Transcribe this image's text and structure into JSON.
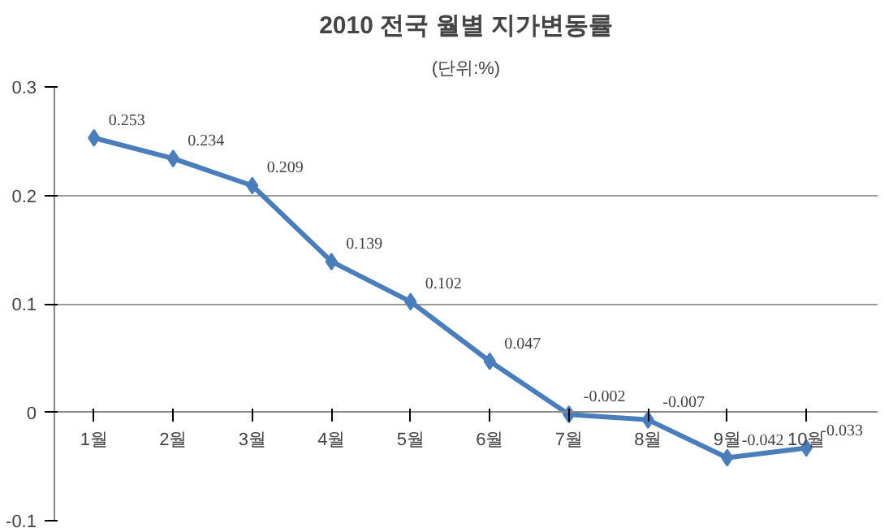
{
  "chart_data": {
    "type": "line",
    "title": "2010 전국 월별 지가변동률",
    "subtitle": "(단위:%)",
    "categories": [
      "1월",
      "2월",
      "3월",
      "4월",
      "5월",
      "6월",
      "7월",
      "8월",
      "9월",
      "10월"
    ],
    "series": [
      {
        "color": "#4a7ebb",
        "values": [
          0.253,
          0.234,
          0.209,
          0.139,
          0.102,
          0.047,
          -0.002,
          -0.007,
          -0.042,
          -0.033
        ]
      }
    ],
    "ylim": [
      -0.1,
      0.3
    ],
    "yticks": [
      -0.1,
      0,
      0.1,
      0.2,
      0.3
    ],
    "grid": "y",
    "marker": "diamond",
    "line_style": "solid",
    "data_labels": true
  }
}
